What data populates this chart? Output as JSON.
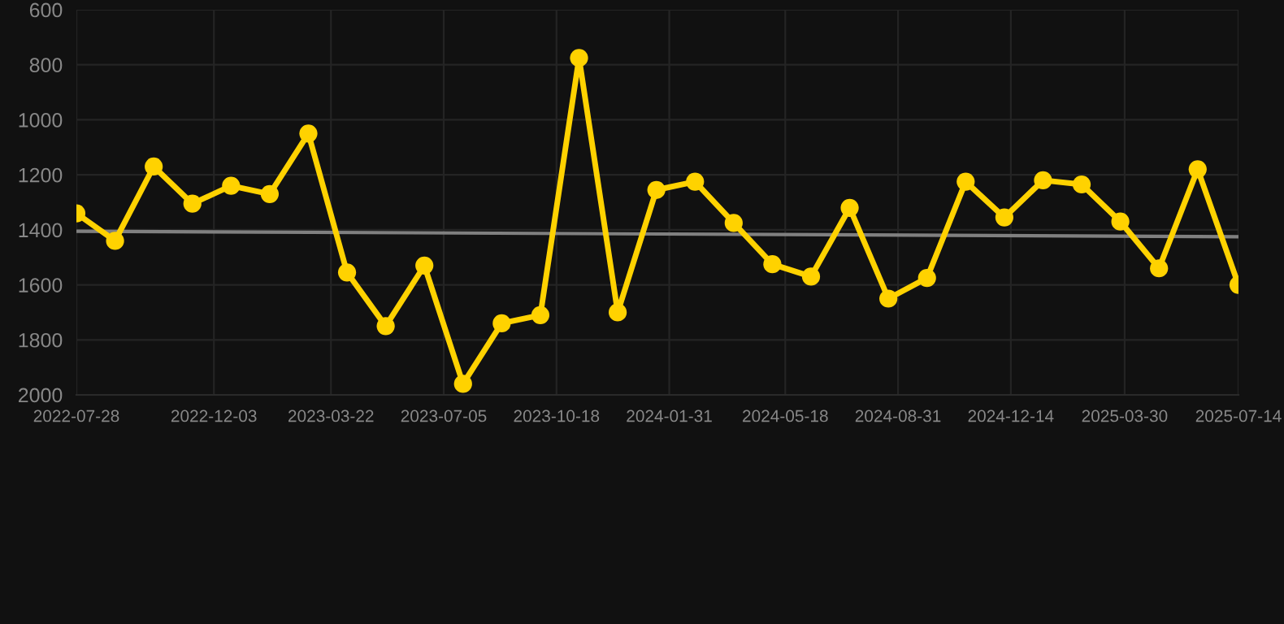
{
  "chart_data": {
    "type": "line",
    "x": [
      "2022-07-28",
      "2022-09-02",
      "2022-10-08",
      "2022-11-13",
      "2022-12-19",
      "2023-01-24",
      "2023-03-01",
      "2023-04-06",
      "2023-05-12",
      "2023-06-17",
      "2023-07-23",
      "2023-08-28",
      "2023-10-03",
      "2023-11-08",
      "2023-12-14",
      "2024-01-19",
      "2024-02-24",
      "2024-03-31",
      "2024-05-06",
      "2024-06-11",
      "2024-07-17",
      "2024-08-22",
      "2024-09-27",
      "2024-11-02",
      "2024-12-08",
      "2025-01-13",
      "2025-02-18",
      "2025-03-26",
      "2025-05-01",
      "2025-06-06",
      "2025-07-14"
    ],
    "series": [
      {
        "color": "#ffd200",
        "marker": "circle",
        "values": [
          1340,
          1440,
          1170,
          1305,
          1240,
          1270,
          1050,
          1555,
          1750,
          1530,
          1960,
          1740,
          1710,
          775,
          1700,
          1255,
          1225,
          1375,
          1525,
          1570,
          1320,
          1650,
          1575,
          1225,
          1355,
          1220,
          1235,
          1370,
          1540,
          1180,
          1600
        ]
      },
      {
        "color": "#808080",
        "marker": "none",
        "x": [
          "2022-07-28",
          "2025-07-14"
        ],
        "values": [
          1405,
          1425
        ]
      }
    ],
    "xlim": [
      "2022-07-28",
      "2025-07-14"
    ],
    "xticks": [
      {
        "value": "2022-07-28",
        "label": "2022-07-28"
      },
      {
        "value": "2022-12-03",
        "label": "2022-12-03"
      },
      {
        "value": "2023-03-22",
        "label": "2023-03-22"
      },
      {
        "value": "2023-07-05",
        "label": "2023-07-05"
      },
      {
        "value": "2023-10-18",
        "label": "2023-10-18"
      },
      {
        "value": "2024-01-31",
        "label": "2024-01-31"
      },
      {
        "value": "2024-05-18",
        "label": "2024-05-18"
      },
      {
        "value": "2024-08-31",
        "label": "2024-08-31"
      },
      {
        "value": "2024-12-14",
        "label": "2024-12-14"
      },
      {
        "value": "2025-03-30",
        "label": "2025-03-30"
      },
      {
        "value": "2025-07-14",
        "label": "2025-07-14"
      }
    ],
    "ylim": [
      2000,
      600
    ],
    "yticks": [
      600,
      800,
      1000,
      1200,
      1400,
      1600,
      1800,
      2000
    ],
    "grid": true,
    "line_style": "solid"
  }
}
